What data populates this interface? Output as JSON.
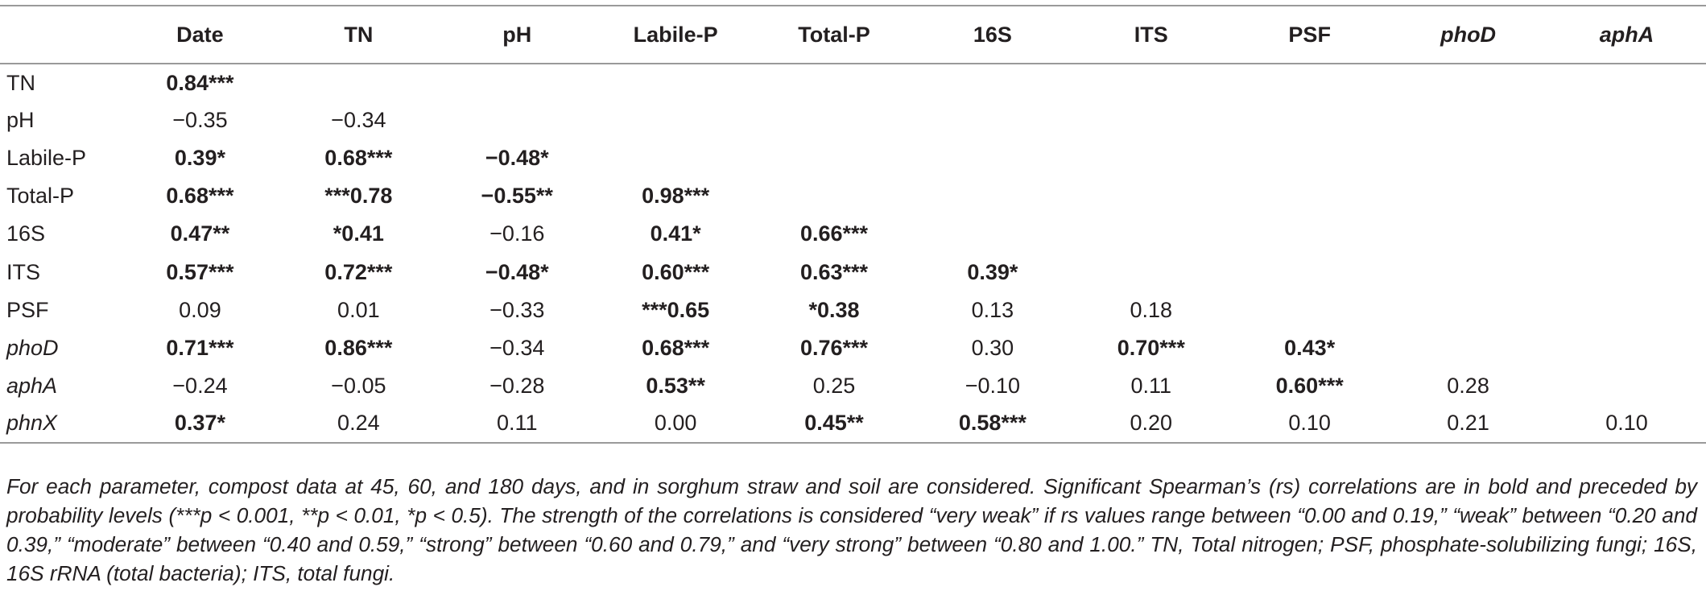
{
  "table": {
    "columns": [
      {
        "label": "",
        "italic": false
      },
      {
        "label": "Date",
        "italic": false
      },
      {
        "label": "TN",
        "italic": false
      },
      {
        "label": "pH",
        "italic": false
      },
      {
        "label": "Labile-P",
        "italic": false
      },
      {
        "label": "Total-P",
        "italic": false
      },
      {
        "label": "16S",
        "italic": false
      },
      {
        "label": "ITS",
        "italic": false
      },
      {
        "label": "PSF",
        "italic": false
      },
      {
        "label": "phoD",
        "italic": true
      },
      {
        "label": "aphA",
        "italic": true
      }
    ],
    "rows": [
      {
        "label": "TN",
        "italic": false,
        "cells": [
          {
            "v": "0.84***",
            "b": true
          }
        ]
      },
      {
        "label": "pH",
        "italic": false,
        "cells": [
          {
            "v": "−0.35",
            "b": false
          },
          {
            "v": "−0.34",
            "b": false
          }
        ]
      },
      {
        "label": "Labile-P",
        "italic": false,
        "cells": [
          {
            "v": "0.39*",
            "b": true
          },
          {
            "v": "0.68***",
            "b": true
          },
          {
            "v": "−0.48*",
            "b": true
          }
        ]
      },
      {
        "label": "Total-P",
        "italic": false,
        "cells": [
          {
            "v": "0.68***",
            "b": true
          },
          {
            "v": "***0.78",
            "b": true
          },
          {
            "v": "−0.55**",
            "b": true
          },
          {
            "v": "0.98***",
            "b": true
          }
        ]
      },
      {
        "label": "16S",
        "italic": false,
        "cells": [
          {
            "v": "0.47**",
            "b": true
          },
          {
            "v": "*0.41",
            "b": true
          },
          {
            "v": "−0.16",
            "b": false
          },
          {
            "v": "0.41*",
            "b": true
          },
          {
            "v": "0.66***",
            "b": true
          }
        ]
      },
      {
        "label": "ITS",
        "italic": false,
        "cells": [
          {
            "v": "0.57***",
            "b": true
          },
          {
            "v": "0.72***",
            "b": true
          },
          {
            "v": "−0.48*",
            "b": true
          },
          {
            "v": "0.60***",
            "b": true
          },
          {
            "v": "0.63***",
            "b": true
          },
          {
            "v": "0.39*",
            "b": true
          }
        ]
      },
      {
        "label": "PSF",
        "italic": false,
        "cells": [
          {
            "v": "0.09",
            "b": false
          },
          {
            "v": "0.01",
            "b": false
          },
          {
            "v": "−0.33",
            "b": false
          },
          {
            "v": "***0.65",
            "b": true
          },
          {
            "v": "*0.38",
            "b": true
          },
          {
            "v": "0.13",
            "b": false
          },
          {
            "v": "0.18",
            "b": false
          }
        ]
      },
      {
        "label": "phoD",
        "italic": true,
        "cells": [
          {
            "v": "0.71***",
            "b": true
          },
          {
            "v": "0.86***",
            "b": true
          },
          {
            "v": "−0.34",
            "b": false
          },
          {
            "v": "0.68***",
            "b": true
          },
          {
            "v": "0.76***",
            "b": true
          },
          {
            "v": "0.30",
            "b": false
          },
          {
            "v": "0.70***",
            "b": true
          },
          {
            "v": "0.43*",
            "b": true
          }
        ]
      },
      {
        "label": "aphA",
        "italic": true,
        "cells": [
          {
            "v": "−0.24",
            "b": false
          },
          {
            "v": "−0.05",
            "b": false
          },
          {
            "v": "−0.28",
            "b": false
          },
          {
            "v": "0.53**",
            "b": true
          },
          {
            "v": "0.25",
            "b": false
          },
          {
            "v": "−0.10",
            "b": false
          },
          {
            "v": "0.11",
            "b": false
          },
          {
            "v": "0.60***",
            "b": true
          },
          {
            "v": "0.28",
            "b": false
          }
        ]
      },
      {
        "label": "phnX",
        "italic": true,
        "cells": [
          {
            "v": "0.37*",
            "b": true
          },
          {
            "v": "0.24",
            "b": false
          },
          {
            "v": "0.11",
            "b": false
          },
          {
            "v": "0.00",
            "b": false
          },
          {
            "v": "0.45**",
            "b": true
          },
          {
            "v": "0.58***",
            "b": true
          },
          {
            "v": "0.20",
            "b": false
          },
          {
            "v": "0.10",
            "b": false
          },
          {
            "v": "0.21",
            "b": false
          },
          {
            "v": "0.10",
            "b": false
          }
        ]
      }
    ]
  },
  "footnote": "For each parameter, compost data at 45, 60, and 180 days, and in sorghum straw and soil are considered. Significant Spearman’s (rs) correlations are in bold and preceded by probability levels (***p < 0.001, **p < 0.01, *p < 0.5). The strength of the correlations is considered “very weak” if rs values range between “0.00 and 0.19,” “weak” between “0.20 and 0.39,” “moderate” between “0.40 and 0.59,” “strong” between “0.60 and 0.79,” and “very strong” between “0.80 and 1.00.” TN, Total nitrogen; PSF, phosphate-solubilizing fungi; 16S, 16S rRNA (total bacteria); ITS, total fungi."
}
